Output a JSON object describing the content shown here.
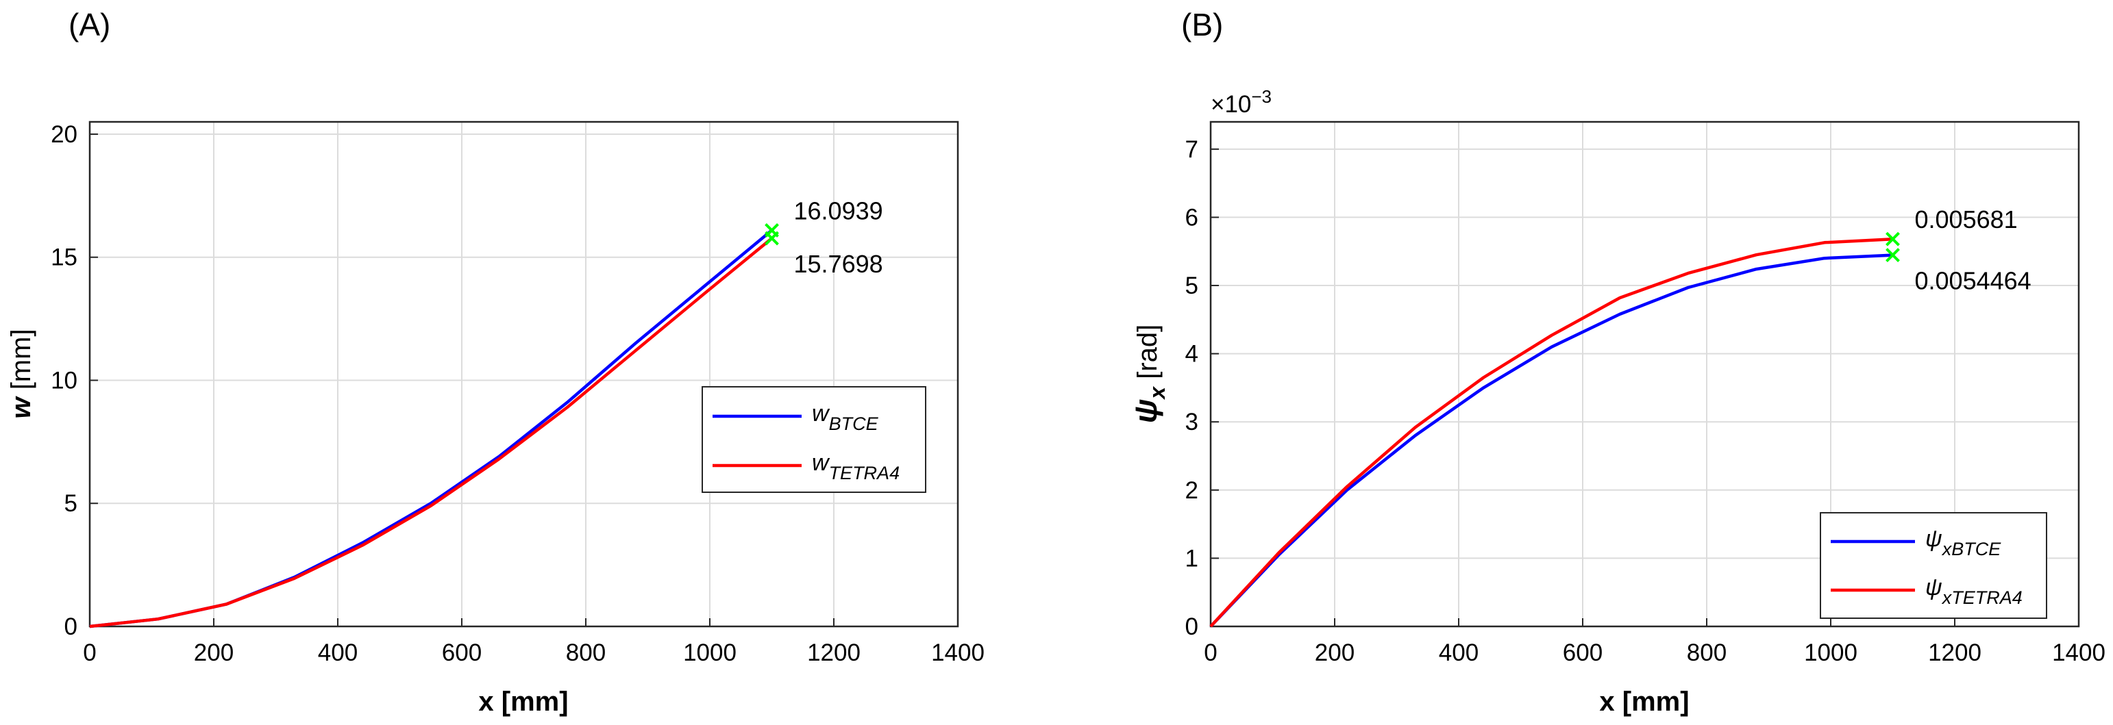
{
  "chart_data": [
    {
      "type": "line",
      "panel_label": "(A)",
      "xlabel": "x [mm]",
      "ylabel": {
        "symbol": "w",
        "unit": " [mm]"
      },
      "xlim": [
        0,
        1400
      ],
      "ylim": [
        0,
        20.5
      ],
      "xticks": [
        0,
        200,
        400,
        600,
        800,
        1000,
        1200,
        1400
      ],
      "yticks": [
        0,
        5,
        10,
        15,
        20
      ],
      "exponent_label": "",
      "grid": true,
      "legend_position": "center-right",
      "series": [
        {
          "name": "w_BTCE",
          "legend_base": "w",
          "legend_sub": "BTCE",
          "color": "#0000ff",
          "x": [
            0,
            110,
            220,
            330,
            440,
            550,
            660,
            770,
            880,
            990,
            1100
          ],
          "y": [
            0,
            0.3,
            0.9,
            2.0,
            3.4,
            5.0,
            6.9,
            9.1,
            11.5,
            13.8,
            16.0939
          ]
        },
        {
          "name": "w_TETRA4",
          "legend_base": "w",
          "legend_sub": "TETRA4",
          "color": "#ff0000",
          "x": [
            0,
            110,
            220,
            330,
            440,
            550,
            660,
            770,
            880,
            990,
            1100
          ],
          "y": [
            0,
            0.3,
            0.9,
            1.95,
            3.3,
            4.9,
            6.8,
            8.9,
            11.2,
            13.5,
            15.7698
          ]
        }
      ],
      "markers": [
        {
          "x": 1100,
          "y": 16.0939,
          "label": "16.0939",
          "color": "#00ff00"
        },
        {
          "x": 1100,
          "y": 15.7698,
          "label": "15.7698",
          "color": "#00ff00"
        }
      ]
    },
    {
      "type": "line",
      "panel_label": "(B)",
      "xlabel": "x [mm]",
      "ylabel": {
        "symbol": "ψ",
        "sub": "x",
        "unit": " [rad]"
      },
      "xlim": [
        0,
        1400
      ],
      "ylim": [
        0,
        7.4
      ],
      "xticks": [
        0,
        200,
        400,
        600,
        800,
        1000,
        1200,
        1400
      ],
      "yticks": [
        0,
        1,
        2,
        3,
        4,
        5,
        6,
        7
      ],
      "exponent_label": "×10",
      "exponent_power": "−3",
      "grid": true,
      "legend_position": "bottom-right",
      "series": [
        {
          "name": "ψ_xBTCE",
          "legend_base": "ψ",
          "legend_sub": "xBTCE",
          "color": "#0000ff",
          "x": [
            0,
            110,
            220,
            330,
            440,
            550,
            660,
            770,
            880,
            990,
            1100
          ],
          "y": [
            0,
            1.05,
            2.0,
            2.8,
            3.5,
            4.1,
            4.58,
            4.97,
            5.24,
            5.4,
            5.4464
          ]
        },
        {
          "name": "ψ_xTETRA4",
          "legend_base": "ψ",
          "legend_sub": "xTETRA4",
          "color": "#ff0000",
          "x": [
            0,
            110,
            220,
            330,
            440,
            550,
            660,
            770,
            880,
            990,
            1100
          ],
          "y": [
            0,
            1.08,
            2.05,
            2.92,
            3.65,
            4.27,
            4.82,
            5.18,
            5.45,
            5.63,
            5.681
          ]
        }
      ],
      "markers": [
        {
          "x": 1100,
          "y": 5.681,
          "label": "0.005681",
          "color": "#00ff00"
        },
        {
          "x": 1100,
          "y": 5.4464,
          "label": "0.0054464",
          "color": "#00ff00"
        }
      ]
    }
  ]
}
